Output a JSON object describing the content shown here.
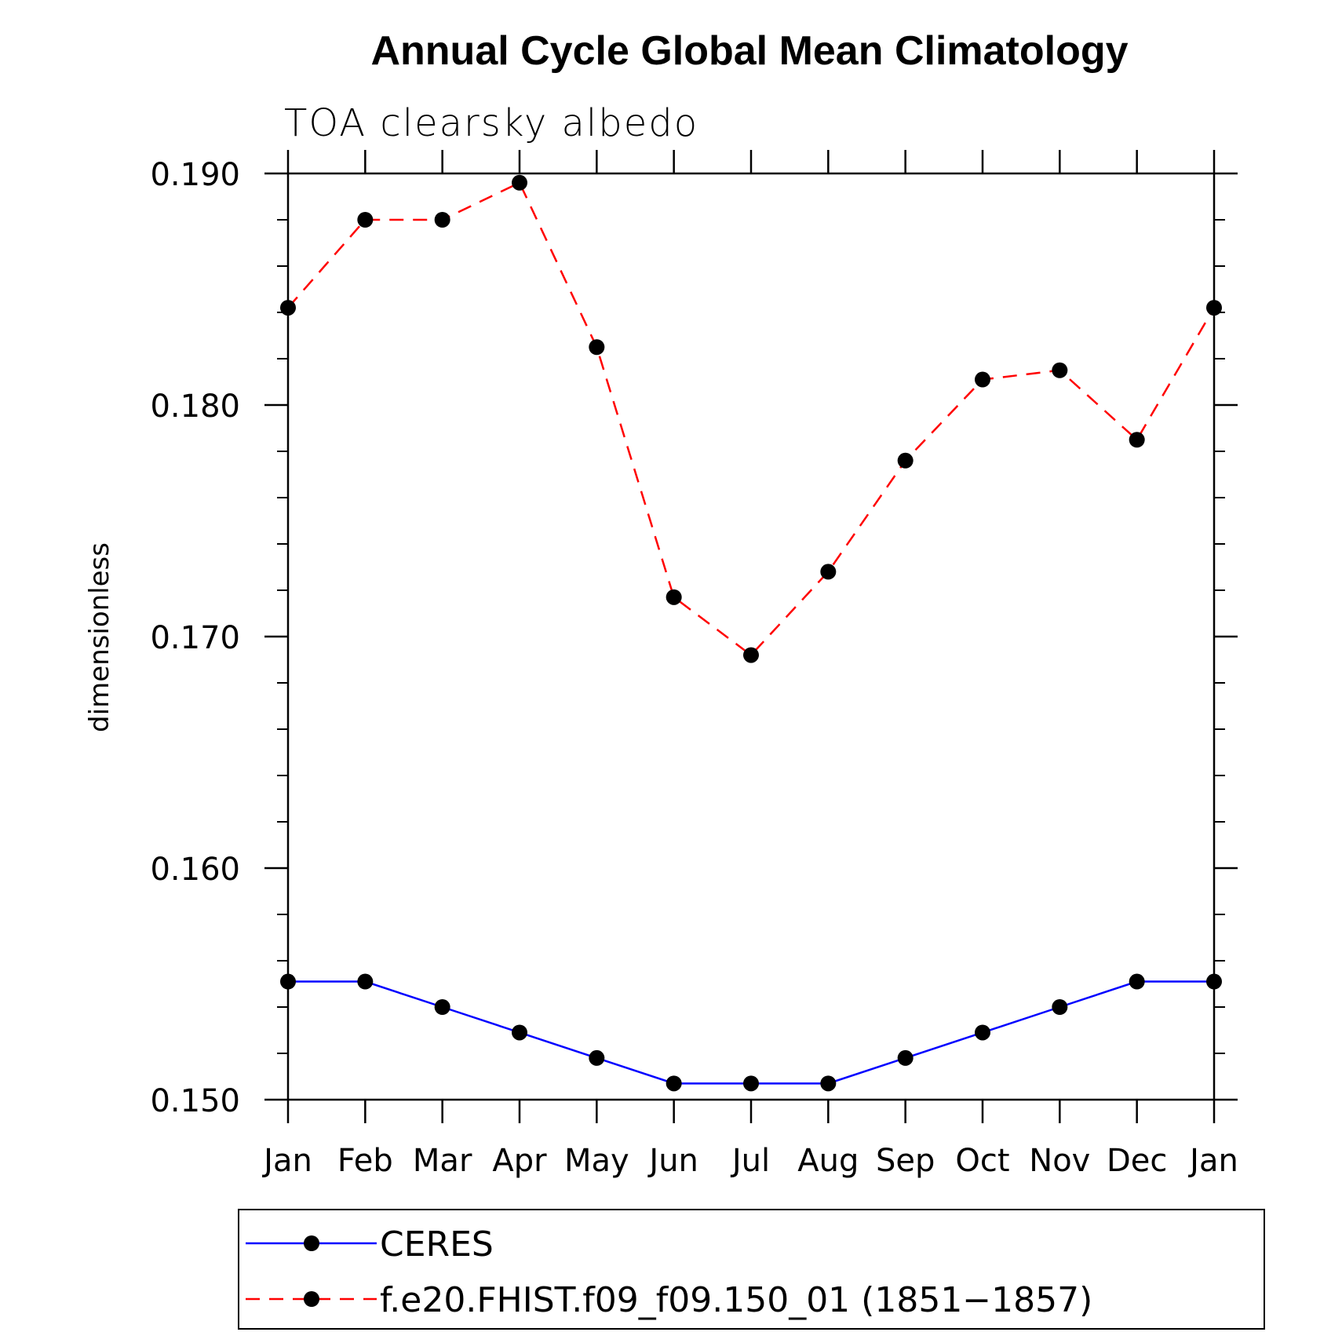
{
  "chart_data": {
    "type": "line",
    "title": "Annual Cycle Global Mean Climatology",
    "subtitle": "TOA clearsky albedo",
    "xlabel": "",
    "ylabel": "dimensionless",
    "categories": [
      "Jan",
      "Feb",
      "Mar",
      "Apr",
      "May",
      "Jun",
      "Jul",
      "Aug",
      "Sep",
      "Oct",
      "Nov",
      "Dec",
      "Jan"
    ],
    "ylim": [
      0.15,
      0.19
    ],
    "yticks": [
      "0.150",
      "0.160",
      "0.170",
      "0.180",
      "0.190"
    ],
    "ytick_values": [
      0.15,
      0.16,
      0.17,
      0.18,
      0.19
    ],
    "grid": false,
    "series": [
      {
        "name": "CERES",
        "color": "#0000ff",
        "dash": "solid",
        "values": [
          0.1551,
          0.1551,
          0.154,
          0.1529,
          0.1518,
          0.1507,
          0.1507,
          0.1507,
          0.1518,
          0.1529,
          0.154,
          0.1551,
          0.1551
        ]
      },
      {
        "name": "f.e20.FHIST.f09_f09.150_01 (1851−1857)",
        "color": "#ff0000",
        "dash": "dashed",
        "values": [
          0.1842,
          0.188,
          0.188,
          0.1896,
          0.1825,
          0.1717,
          0.1692,
          0.1728,
          0.1776,
          0.1811,
          0.1815,
          0.1785,
          0.1842
        ]
      }
    ],
    "legend_position": "bottom"
  }
}
